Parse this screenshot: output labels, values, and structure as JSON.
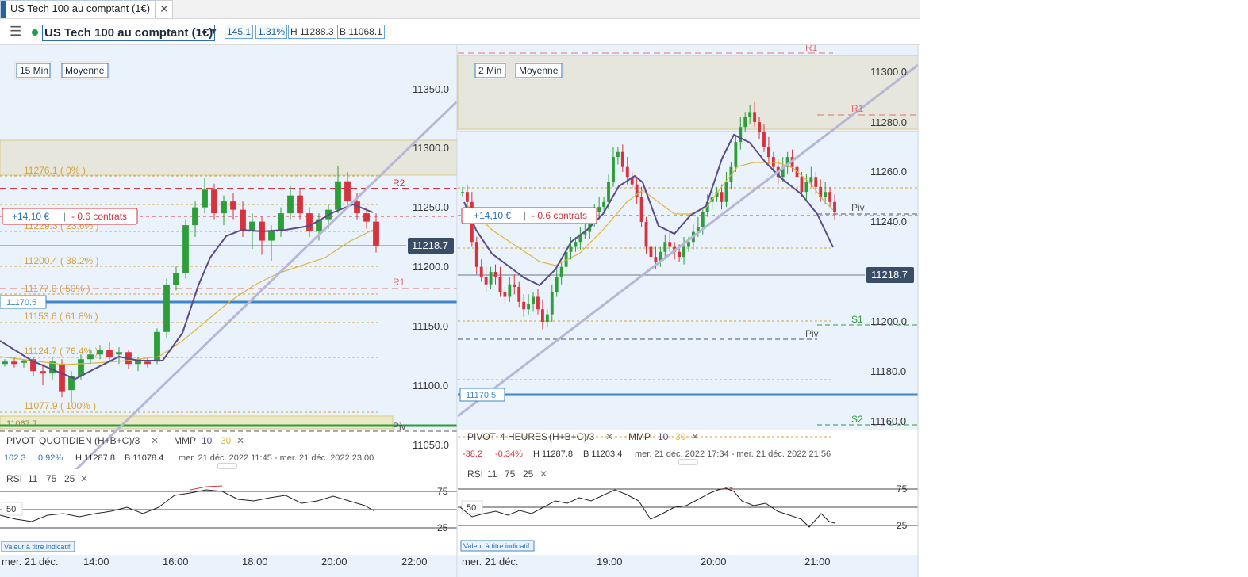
{
  "tab": {
    "title": "US Tech 100 au comptant (1€)",
    "close": "✕"
  },
  "toolbar": {
    "menu_icon": "hamburger-menu-icon",
    "instrument": "US Tech 100 au comptant (1€)",
    "change": "145.1",
    "change_pct": "1.31%",
    "high": "H 11288.3",
    "low": "B 11068.1"
  },
  "colors": {
    "bull": "#2e9e3a",
    "bear": "#d6333e",
    "accent": "#2a6fb6",
    "fib": "#d8a13a",
    "trend": "#b7b7d6"
  },
  "left_chart": {
    "interval": "15 Min",
    "mode": "Moyenne",
    "price_axis": [
      "11350.0",
      "11300.0",
      "11250.0",
      "11200.0",
      "11150.0",
      "11100.0",
      "11050.0"
    ],
    "time_axis": [
      "mer. 21 déc.",
      "14:00",
      "16:00",
      "18:00",
      "20:00",
      "22:00"
    ],
    "fib_labels": [
      "11276.1 ( 0% )",
      "11229.3 ( 23.6% )",
      "11200.4 ( 38.2% )",
      "11177.0 ( 50% )",
      "11153.6 ( 61.8% )",
      "11124.7 ( 76.4% )",
      "11077.9 ( 100% )"
    ],
    "last_price": "11218.7",
    "level_tag": "11170.5",
    "low_tag": "11067.7",
    "r2": "R2",
    "r1": "R1",
    "piv": "Piv",
    "position_pnl": "+14,10 €",
    "position_size": "- 0.6 contrats",
    "pivot": {
      "label": "PIVOT",
      "period": "QUOTIDIEN",
      "formula": "(H+B+C)/3",
      "mmp": "MMP",
      "mmp1": "10",
      "mmp2": "30",
      "value": "102.3",
      "pct": "0.92%",
      "high": "H 11287.8",
      "low": "B 11078.4",
      "range": "mer. 21 déc. 2022 11:45 - mer. 21 déc. 2022 23:00"
    },
    "rsi": {
      "label": "RSI",
      "p1": "11",
      "p2": "75",
      "p3": "25",
      "lvl75": "75",
      "lvl50": "50",
      "lvl25": "25"
    },
    "disclaimer": "Valeur à titre indicatif"
  },
  "right_chart": {
    "interval": "2 Min",
    "mode": "Moyenne",
    "price_axis": [
      "11300.0",
      "11280.0",
      "11260.0",
      "11240.0",
      "11200.0",
      "11180.0",
      "11160.0"
    ],
    "time_axis": [
      "mer. 21 déc.",
      "19:00",
      "20:00",
      "21:00"
    ],
    "last_price": "11218.7",
    "level_tag": "11170.5",
    "r1_top": "R1",
    "r1": "R1",
    "piv_top": "Piv",
    "s1": "S1",
    "piv": "Piv",
    "s2": "S2",
    "position_pnl": "+14,10 €",
    "position_size": "- 0.6 contrats",
    "pivot": {
      "label": "PIVOT",
      "period": "4 HEURES",
      "formula": "(H+B+C)/3",
      "mmp": "MMP",
      "mmp1": "10",
      "mmp2": "30",
      "value": "-38.2",
      "pct": "-0.34%",
      "high": "H 11287.8",
      "low": "B 11203.4",
      "range": "mer. 21 déc. 2022 17:34 - mer. 21 déc. 2022 21:56"
    },
    "rsi": {
      "label": "RSI",
      "p1": "11",
      "p2": "75",
      "p3": "25",
      "lvl75": "75",
      "lvl50": "50",
      "lvl25": "25"
    },
    "disclaimer": "Valeur à titre indicatif"
  },
  "chart_data": [
    {
      "type": "candlestick",
      "title": "US Tech 100 au comptant (1€) - 15 Min",
      "x_labels": [
        "14:00",
        "16:00",
        "18:00",
        "20:00",
        "22:00"
      ],
      "ylim": [
        11040,
        11370
      ],
      "candles_ohlc": [
        [
          11118,
          11122,
          11116,
          11120
        ],
        [
          11120,
          11124,
          11115,
          11118
        ],
        [
          11119,
          11122,
          11115,
          11121
        ],
        [
          11122,
          11124,
          11108,
          11112
        ],
        [
          11112,
          11118,
          11100,
          11110
        ],
        [
          11110,
          11124,
          11105,
          11120
        ],
        [
          11118,
          11122,
          11090,
          11095
        ],
        [
          11096,
          11112,
          11085,
          11108
        ],
        [
          11108,
          11126,
          11105,
          11122
        ],
        [
          11122,
          11130,
          11118,
          11126
        ],
        [
          11126,
          11134,
          11122,
          11130
        ],
        [
          11130,
          11136,
          11120,
          11124
        ],
        [
          11126,
          11132,
          11118,
          11128
        ],
        [
          11128,
          11130,
          11114,
          11118
        ],
        [
          11118,
          11124,
          11112,
          11122
        ],
        [
          11120,
          11124,
          11115,
          11118
        ],
        [
          11120,
          11148,
          11118,
          11145
        ],
        [
          11145,
          11190,
          11140,
          11185
        ],
        [
          11185,
          11200,
          11180,
          11195
        ],
        [
          11195,
          11240,
          11190,
          11235
        ],
        [
          11235,
          11255,
          11225,
          11250
        ],
        [
          11250,
          11275,
          11245,
          11265
        ],
        [
          11265,
          11270,
          11240,
          11245
        ],
        [
          11245,
          11260,
          11235,
          11255
        ],
        [
          11255,
          11262,
          11240,
          11248
        ],
        [
          11248,
          11255,
          11225,
          11230
        ],
        [
          11230,
          11245,
          11215,
          11238
        ],
        [
          11238,
          11242,
          11210,
          11222
        ],
        [
          11222,
          11235,
          11205,
          11230
        ],
        [
          11230,
          11250,
          11225,
          11245
        ],
        [
          11245,
          11268,
          11240,
          11260
        ],
        [
          11260,
          11265,
          11240,
          11245
        ],
        [
          11245,
          11250,
          11225,
          11230
        ],
        [
          11230,
          11245,
          11222,
          11240
        ],
        [
          11240,
          11252,
          11232,
          11248
        ],
        [
          11248,
          11285,
          11245,
          11272
        ],
        [
          11272,
          11280,
          11250,
          11255
        ],
        [
          11255,
          11262,
          11240,
          11245
        ],
        [
          11245,
          11250,
          11232,
          11238
        ],
        [
          11238,
          11245,
          11212,
          11218
        ]
      ],
      "series": [
        {
          "name": "MMP 10",
          "color": "#5b4a8a"
        },
        {
          "name": "MMP 30",
          "color": "#e0b440"
        }
      ],
      "rsi_ylim": [
        0,
        100
      ]
    },
    {
      "type": "candlestick",
      "title": "US Tech 100 au comptant (1€) - 2 Min",
      "x_labels": [
        "19:00",
        "20:00",
        "21:00"
      ],
      "ylim": [
        11150,
        11310
      ],
      "candle_count": 110,
      "series": [
        {
          "name": "MMP 10",
          "color": "#5b4a8a"
        },
        {
          "name": "MMP 30",
          "color": "#e0b440"
        }
      ]
    }
  ]
}
